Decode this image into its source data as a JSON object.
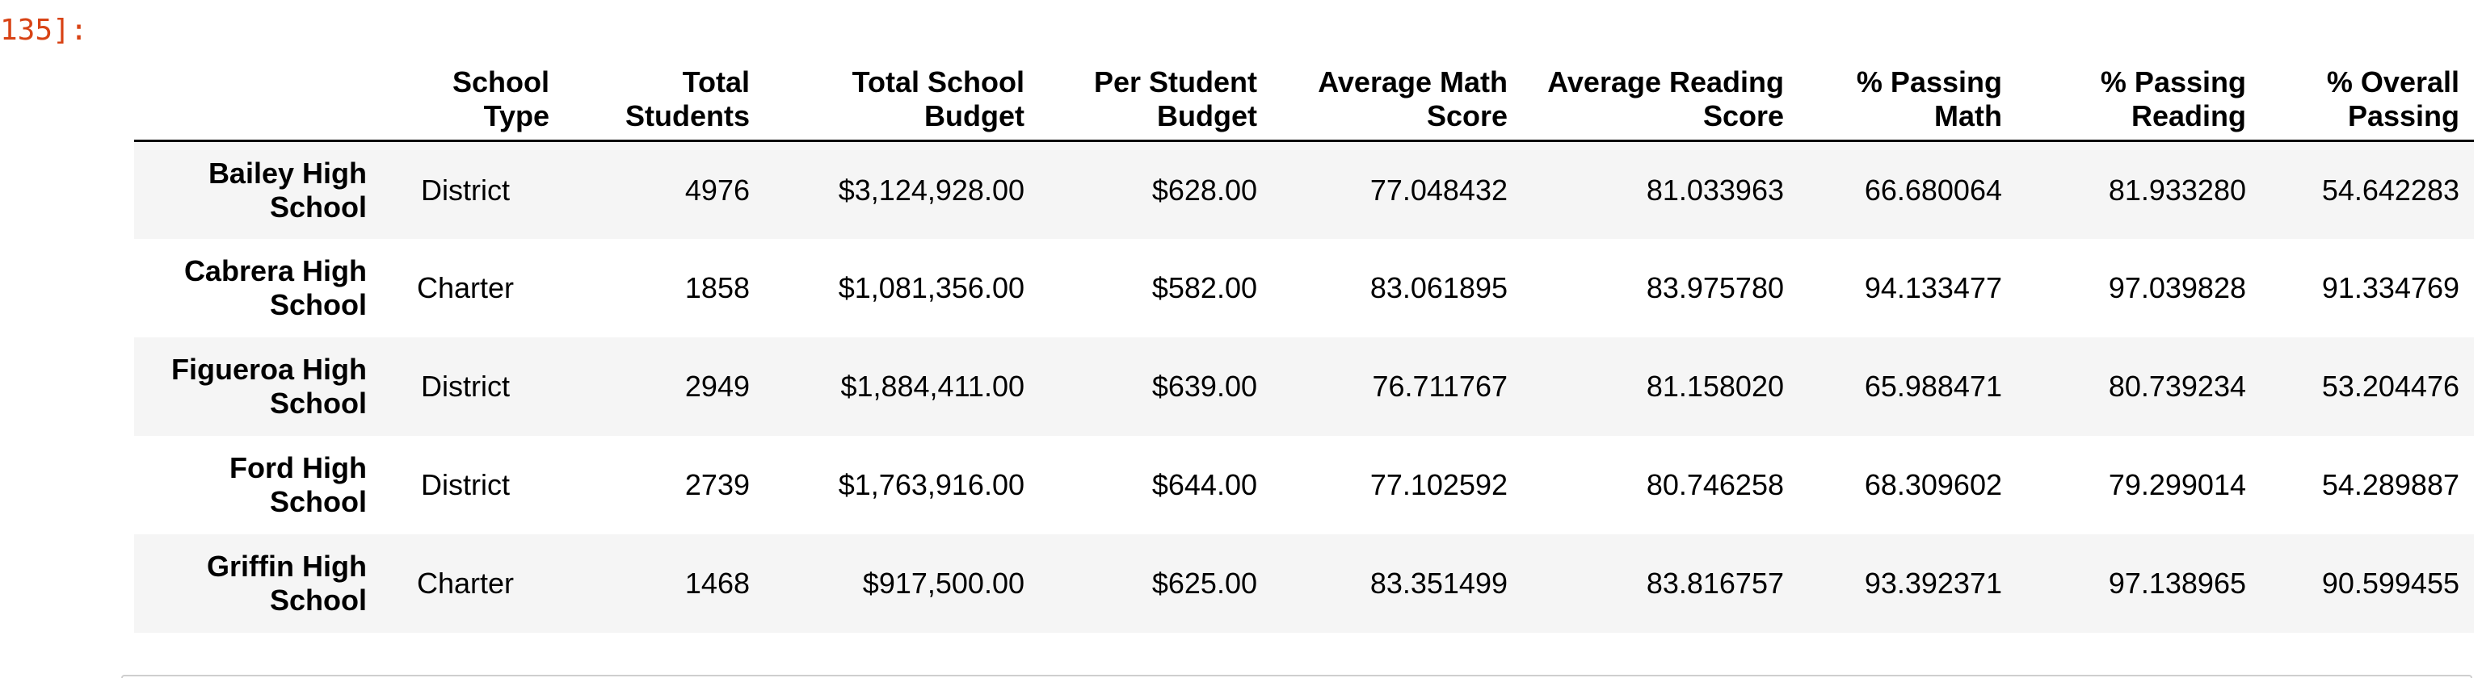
{
  "prompt": {
    "label": "135]:"
  },
  "table": {
    "columns": [
      {
        "lines": [
          "",
          ""
        ]
      },
      {
        "lines": [
          "School",
          "Type"
        ]
      },
      {
        "lines": [
          "Total",
          "Students"
        ]
      },
      {
        "lines": [
          "Total School",
          "Budget"
        ]
      },
      {
        "lines": [
          "Per Student",
          "Budget"
        ]
      },
      {
        "lines": [
          "Average Math",
          "Score"
        ]
      },
      {
        "lines": [
          "Average Reading",
          "Score"
        ]
      },
      {
        "lines": [
          "% Passing",
          "Math"
        ]
      },
      {
        "lines": [
          "% Passing",
          "Reading"
        ]
      },
      {
        "lines": [
          "% Overall",
          "Passing"
        ]
      }
    ],
    "rows": [
      {
        "index": [
          "Bailey High",
          "School"
        ],
        "school_type": "District",
        "total_students": "4976",
        "total_school_budget": "$3,124,928.00",
        "per_student_budget": "$628.00",
        "average_math_score": "77.048432",
        "average_reading_score": "81.033963",
        "pct_passing_math": "66.680064",
        "pct_passing_reading": "81.933280",
        "pct_overall_passing": "54.642283"
      },
      {
        "index": [
          "Cabrera High",
          "School"
        ],
        "school_type": "Charter",
        "total_students": "1858",
        "total_school_budget": "$1,081,356.00",
        "per_student_budget": "$582.00",
        "average_math_score": "83.061895",
        "average_reading_score": "83.975780",
        "pct_passing_math": "94.133477",
        "pct_passing_reading": "97.039828",
        "pct_overall_passing": "91.334769"
      },
      {
        "index": [
          "Figueroa High",
          "School"
        ],
        "school_type": "District",
        "total_students": "2949",
        "total_school_budget": "$1,884,411.00",
        "per_student_budget": "$639.00",
        "average_math_score": "76.711767",
        "average_reading_score": "81.158020",
        "pct_passing_math": "65.988471",
        "pct_passing_reading": "80.739234",
        "pct_overall_passing": "53.204476"
      },
      {
        "index": [
          "Ford High",
          "School"
        ],
        "school_type": "District",
        "total_students": "2739",
        "total_school_budget": "$1,763,916.00",
        "per_student_budget": "$644.00",
        "average_math_score": "77.102592",
        "average_reading_score": "80.746258",
        "pct_passing_math": "68.309602",
        "pct_passing_reading": "79.299014",
        "pct_overall_passing": "54.289887"
      },
      {
        "index": [
          "Griffin High",
          "School"
        ],
        "school_type": "Charter",
        "total_students": "1468",
        "total_school_budget": "$917,500.00",
        "per_student_budget": "$625.00",
        "average_math_score": "83.351499",
        "average_reading_score": "83.816757",
        "pct_passing_math": "93.392371",
        "pct_passing_reading": "97.138965",
        "pct_overall_passing": "90.599455"
      }
    ]
  },
  "colors": {
    "prompt": "#d84315",
    "row_shade": "#f5f5f5",
    "header_rule": "#000000"
  }
}
